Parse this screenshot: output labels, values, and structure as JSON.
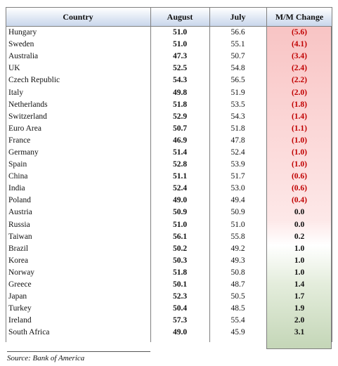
{
  "table": {
    "headers": [
      "Country",
      "August",
      "July",
      "M/M Change"
    ],
    "rows": [
      [
        "Hungary",
        "51.0",
        "56.6",
        "(5.6)"
      ],
      [
        "Sweden",
        "51.0",
        "55.1",
        "(4.1)"
      ],
      [
        "Australia",
        "47.3",
        "50.7",
        "(3.4)"
      ],
      [
        "UK",
        "52.5",
        "54.8",
        "(2.4)"
      ],
      [
        "Czech Republic",
        "54.3",
        "56.5",
        "(2.2)"
      ],
      [
        "Italy",
        "49.8",
        "51.9",
        "(2.0)"
      ],
      [
        "Netherlands",
        "51.8",
        "53.5",
        "(1.8)"
      ],
      [
        "Switzerland",
        "52.9",
        "54.3",
        "(1.4)"
      ],
      [
        "Euro Area",
        "50.7",
        "51.8",
        "(1.1)"
      ],
      [
        "France",
        "46.9",
        "47.8",
        "(1.0)"
      ],
      [
        "Germany",
        "51.4",
        "52.4",
        "(1.0)"
      ],
      [
        "Spain",
        "52.8",
        "53.9",
        "(1.0)"
      ],
      [
        "China",
        "51.1",
        "51.7",
        "(0.6)"
      ],
      [
        "India",
        "52.4",
        "53.0",
        "(0.6)"
      ],
      [
        "Poland",
        "49.0",
        "49.4",
        "(0.4)"
      ],
      [
        "Austria",
        "50.9",
        "50.9",
        "0.0"
      ],
      [
        "Russia",
        "51.0",
        "51.0",
        "0.0"
      ],
      [
        "Taiwan",
        "56.1",
        "55.8",
        "0.2"
      ],
      [
        "Brazil",
        "50.2",
        "49.2",
        "1.0"
      ],
      [
        "Korea",
        "50.3",
        "49.3",
        "1.0"
      ],
      [
        "Norway",
        "51.8",
        "50.8",
        "1.0"
      ],
      [
        "Greece",
        "50.1",
        "48.7",
        "1.4"
      ],
      [
        "Japan",
        "52.3",
        "50.5",
        "1.7"
      ],
      [
        "Turkey",
        "50.4",
        "48.5",
        "1.9"
      ],
      [
        "Ireland",
        "57.3",
        "55.4",
        "2.0"
      ],
      [
        "South Africa",
        "49.0",
        "45.9",
        "3.1"
      ]
    ]
  },
  "colors": {
    "negative_text": "#c00000",
    "header_fill": "#c9d7ec",
    "negative_fill": "#f8c4c4",
    "positive_fill": "#c4d6b7"
  },
  "source": "Source: Bank of America"
}
